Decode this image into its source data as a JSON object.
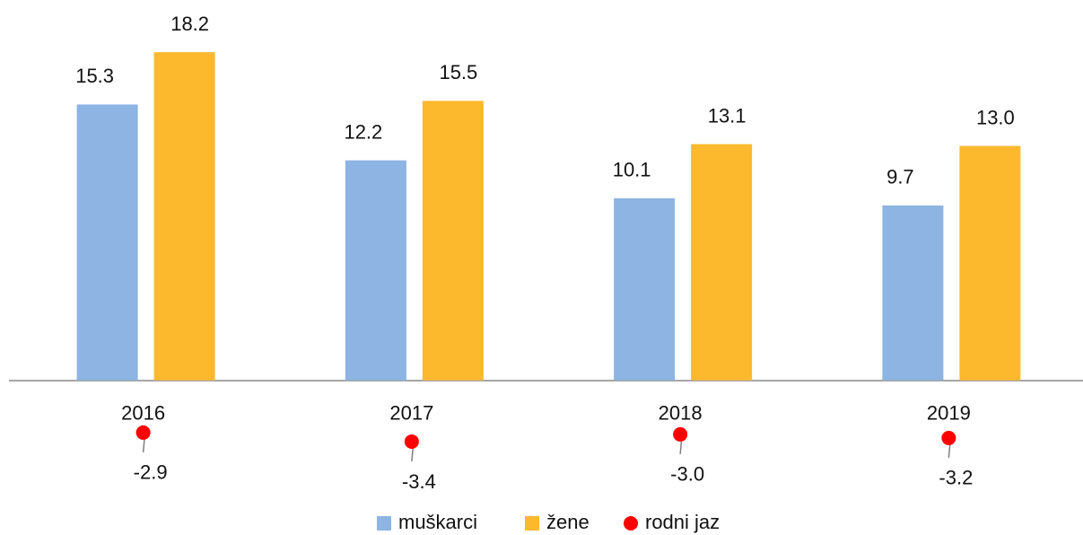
{
  "chart_data": {
    "type": "bar",
    "categories": [
      "2016",
      "2017",
      "2018",
      "2019"
    ],
    "series": [
      {
        "name": "muškarci",
        "color": "#8db4e2",
        "values": [
          15.3,
          12.2,
          10.1,
          9.7
        ],
        "value_labels": [
          "15.3",
          "12.2",
          "10.1",
          "9.7"
        ]
      },
      {
        "name": "žene",
        "color": "#fdb92e",
        "values": [
          18.2,
          15.5,
          13.1,
          13.0
        ],
        "value_labels": [
          "18.2",
          "15.5",
          "13.1",
          "13.0"
        ]
      },
      {
        "name": "rodni jaz",
        "color": "#ff0000",
        "type": "scatter",
        "values": [
          -2.9,
          -3.4,
          -3.0,
          -3.2
        ],
        "value_labels": [
          "-2.9",
          "-3.4",
          "-3.0",
          "-3.2"
        ]
      }
    ],
    "ylim": [
      -4,
      20
    ],
    "legend": "bottom"
  }
}
